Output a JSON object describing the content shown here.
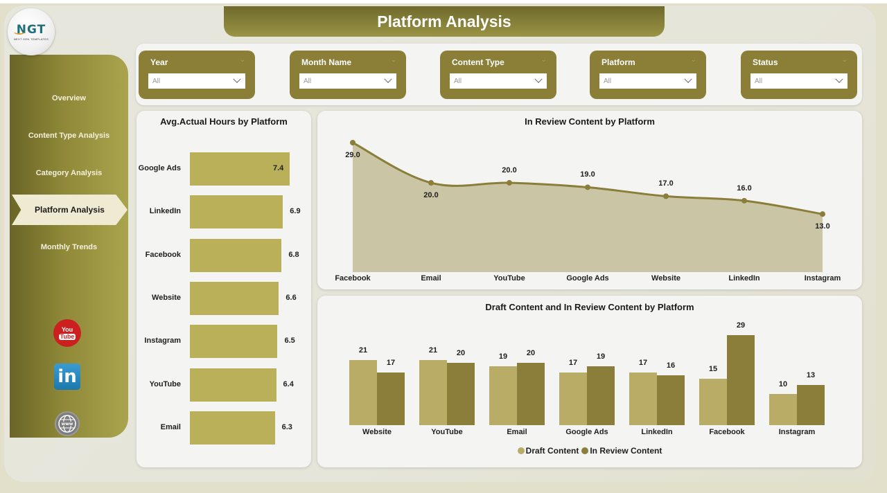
{
  "header": {
    "title": "Platform Analysis"
  },
  "logo": {
    "text": "NGT",
    "subtitle": "NEXT GEN TEMPLATES"
  },
  "sidebar": {
    "items": [
      {
        "label": "Overview",
        "active": false
      },
      {
        "label": "Content Type Analysis",
        "active": false
      },
      {
        "label": "Category Analysis",
        "active": false
      },
      {
        "label": "Platform Analysis",
        "active": true
      },
      {
        "label": "Monthly Trends",
        "active": false
      }
    ],
    "social": [
      {
        "name": "youtube-icon",
        "top": "You",
        "bottom": "Tube"
      },
      {
        "name": "linkedin-icon",
        "text": "in"
      },
      {
        "name": "www-globe-icon",
        "text": "www"
      }
    ]
  },
  "filters": [
    {
      "label": "Year",
      "value": "All"
    },
    {
      "label": "Month Name",
      "value": "All"
    },
    {
      "label": "Content Type",
      "value": "All"
    },
    {
      "label": "Platform",
      "value": "All"
    },
    {
      "label": "Status",
      "value": "All"
    }
  ],
  "colors": {
    "accent_dark": "#8b7f38",
    "bar_light": "#bab059",
    "draft": "#b9ac66",
    "review": "#8a7e3a",
    "area_fill": "#c9c5a5",
    "line": "#8a7e3a"
  },
  "chart_data": [
    {
      "type": "bar",
      "orientation": "horizontal",
      "title": "Avg.Actual Hours by Platform",
      "categories": [
        "Google Ads",
        "LinkedIn",
        "Facebook",
        "Website",
        "Instagram",
        "YouTube",
        "Email"
      ],
      "values": [
        7.4,
        6.9,
        6.8,
        6.6,
        6.5,
        6.4,
        6.3
      ],
      "value_labels": [
        "7.4",
        "6.9",
        "6.8",
        "6.6",
        "6.5",
        "6.4",
        "6.3"
      ],
      "xlabel": "",
      "ylabel": "",
      "grid": false
    },
    {
      "type": "area",
      "title": "In Review Content by Platform",
      "categories": [
        "Facebook",
        "Email",
        "YouTube",
        "Google Ads",
        "Website",
        "LinkedIn",
        "Instagram"
      ],
      "values": [
        29.0,
        20.0,
        20.0,
        19.0,
        17.0,
        16.0,
        13.0
      ],
      "value_labels": [
        "29.0",
        "20.0",
        "20.0",
        "19.0",
        "17.0",
        "16.0",
        "13.0"
      ],
      "xlabel": "",
      "ylabel": "",
      "grid": false
    },
    {
      "type": "bar",
      "title": "Draft Content and In Review Content by Platform",
      "categories": [
        "Website",
        "YouTube",
        "Email",
        "Google Ads",
        "LinkedIn",
        "Facebook",
        "Instagram"
      ],
      "series": [
        {
          "name": "Draft Content",
          "values": [
            21,
            21,
            19,
            17,
            17,
            15,
            10
          ]
        },
        {
          "name": "In Review Content",
          "values": [
            17,
            20,
            20,
            19,
            16,
            29,
            13
          ]
        }
      ],
      "legend_position": "bottom",
      "xlabel": "",
      "ylabel": "",
      "grid": false
    }
  ]
}
